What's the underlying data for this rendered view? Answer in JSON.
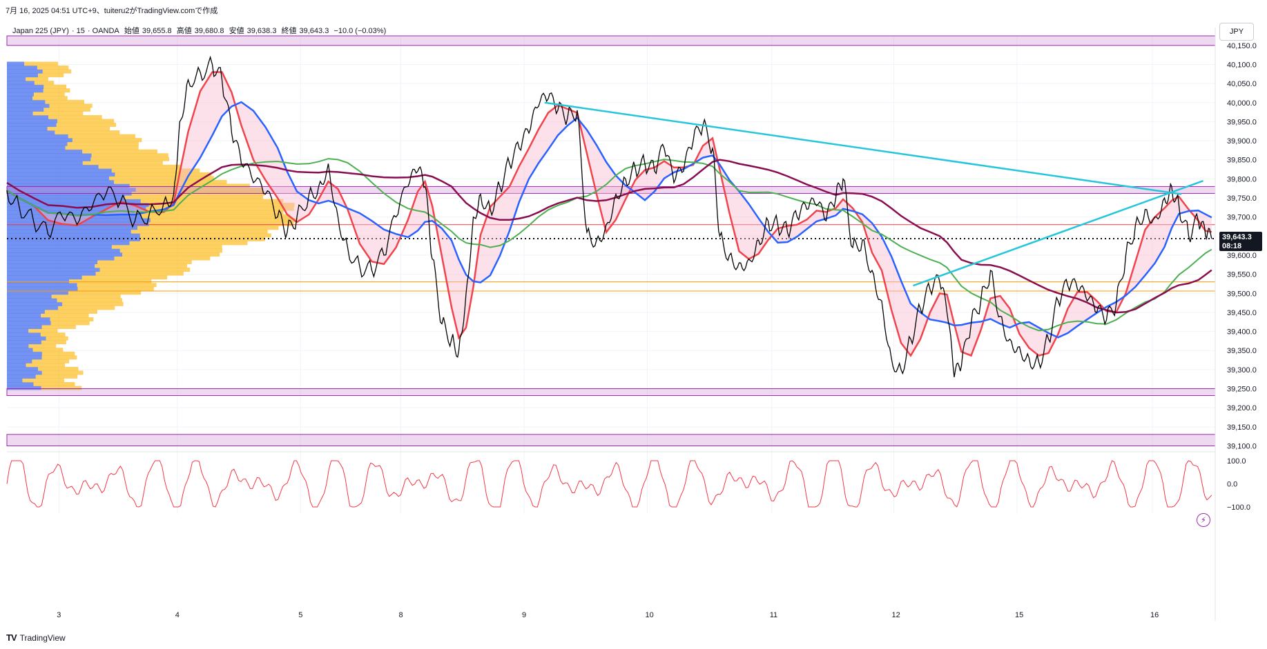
{
  "caption": "7月 16, 2025 04:51 UTC+9、tuiteru2がTradingView.comで作成",
  "legend": {
    "symbol": "Japan 225 (JPY)",
    "interval": "15",
    "source": "OANDA",
    "open_label": "始値",
    "open": "39,655.8",
    "high_label": "高値",
    "high": "39,680.8",
    "low_label": "安値",
    "low": "39,638.3",
    "close_label": "終値",
    "close": "39,643.3",
    "change": "−10.0 (−0.03%)"
  },
  "currency": "JPY",
  "brand": "TradingView",
  "colors": {
    "price": "#000000",
    "fast_ma": "#f0434b",
    "slow_ma": "#2962ff",
    "ma200": "#4caf50",
    "ma_long": "#880e4f",
    "trendline": "#26c6da",
    "zone": "#ce93d8",
    "horizontal_red": "#f23645",
    "horizontal_orange": "#ff9800",
    "oscillator": "#f23645",
    "volume_blue": "#5b7ff0",
    "volume_yellow": "#fbc02d"
  },
  "chart_data": {
    "type": "line",
    "title": "",
    "y_ticks": [
      "40,150.0",
      "40,100.0",
      "40,050.0",
      "40,000.0",
      "39,950.0",
      "39,900.0",
      "39,850.0",
      "39,800.0",
      "39,750.0",
      "39,700.0",
      "39,650.0",
      "39,600.0",
      "39,550.0",
      "39,500.0",
      "39,450.0",
      "39,400.0",
      "39,350.0",
      "39,300.0",
      "39,250.0",
      "39,200.0",
      "39,150.0",
      "39,100.0"
    ],
    "ylim": [
      39090,
      40175
    ],
    "x_ticks": [
      "3",
      "4",
      "5",
      "8",
      "9",
      "10",
      "11",
      "12",
      "15",
      "16"
    ],
    "current_price": "39,643.3",
    "countdown": "08:18",
    "zones": [
      [
        40150,
        40175
      ],
      [
        39762,
        39780
      ],
      [
        39235,
        39250
      ],
      [
        39100,
        39130
      ]
    ],
    "horizontal_lines": [
      {
        "value": 39680,
        "color": "red"
      },
      {
        "value": 39530,
        "color": "orange"
      },
      {
        "value": 39506,
        "color": "orange"
      }
    ],
    "trendlines": [
      {
        "from": [
          0.445,
          40000
        ],
        "to": [
          0.972,
          39760
        ]
      },
      {
        "from": [
          0.75,
          39520
        ],
        "to": [
          0.99,
          39795
        ]
      }
    ],
    "price_path": [
      [
        0.0,
        39770
      ],
      [
        0.01,
        39730
      ],
      [
        0.022,
        39690
      ],
      [
        0.034,
        39655
      ],
      [
        0.046,
        39700
      ],
      [
        0.058,
        39680
      ],
      [
        0.07,
        39720
      ],
      [
        0.082,
        39760
      ],
      [
        0.094,
        39740
      ],
      [
        0.106,
        39690
      ],
      [
        0.118,
        39710
      ],
      [
        0.13,
        39740
      ],
      [
        0.138,
        39760
      ],
      [
        0.143,
        39950
      ],
      [
        0.15,
        40060
      ],
      [
        0.16,
        40080
      ],
      [
        0.17,
        40100
      ],
      [
        0.178,
        40060
      ],
      [
        0.186,
        39920
      ],
      [
        0.194,
        39840
      ],
      [
        0.204,
        39790
      ],
      [
        0.214,
        39760
      ],
      [
        0.224,
        39700
      ],
      [
        0.232,
        39660
      ],
      [
        0.24,
        39700
      ],
      [
        0.25,
        39760
      ],
      [
        0.258,
        39780
      ],
      [
        0.266,
        39840
      ],
      [
        0.274,
        39700
      ],
      [
        0.282,
        39620
      ],
      [
        0.292,
        39570
      ],
      [
        0.302,
        39560
      ],
      [
        0.312,
        39600
      ],
      [
        0.322,
        39700
      ],
      [
        0.332,
        39780
      ],
      [
        0.34,
        39820
      ],
      [
        0.346,
        39780
      ],
      [
        0.352,
        39590
      ],
      [
        0.36,
        39420
      ],
      [
        0.368,
        39380
      ],
      [
        0.374,
        39350
      ],
      [
        0.38,
        39500
      ],
      [
        0.386,
        39700
      ],
      [
        0.392,
        39760
      ],
      [
        0.4,
        39720
      ],
      [
        0.408,
        39780
      ],
      [
        0.416,
        39840
      ],
      [
        0.424,
        39880
      ],
      [
        0.432,
        39920
      ],
      [
        0.44,
        39990
      ],
      [
        0.448,
        40010
      ],
      [
        0.456,
        39980
      ],
      [
        0.464,
        39960
      ],
      [
        0.472,
        39980
      ],
      [
        0.48,
        39660
      ],
      [
        0.488,
        39640
      ],
      [
        0.496,
        39680
      ],
      [
        0.504,
        39760
      ],
      [
        0.512,
        39800
      ],
      [
        0.52,
        39830
      ],
      [
        0.528,
        39840
      ],
      [
        0.536,
        39820
      ],
      [
        0.544,
        39880
      ],
      [
        0.552,
        39790
      ],
      [
        0.56,
        39820
      ],
      [
        0.568,
        39900
      ],
      [
        0.576,
        39940
      ],
      [
        0.584,
        39880
      ],
      [
        0.59,
        39650
      ],
      [
        0.598,
        39600
      ],
      [
        0.606,
        39580
      ],
      [
        0.614,
        39590
      ],
      [
        0.622,
        39640
      ],
      [
        0.63,
        39690
      ],
      [
        0.638,
        39680
      ],
      [
        0.646,
        39660
      ],
      [
        0.654,
        39700
      ],
      [
        0.662,
        39720
      ],
      [
        0.67,
        39730
      ],
      [
        0.678,
        39690
      ],
      [
        0.686,
        39750
      ],
      [
        0.692,
        39800
      ],
      [
        0.7,
        39620
      ],
      [
        0.708,
        39640
      ],
      [
        0.716,
        39560
      ],
      [
        0.724,
        39480
      ],
      [
        0.732,
        39330
      ],
      [
        0.74,
        39300
      ],
      [
        0.748,
        39380
      ],
      [
        0.756,
        39460
      ],
      [
        0.764,
        39510
      ],
      [
        0.772,
        39530
      ],
      [
        0.778,
        39450
      ],
      [
        0.784,
        39280
      ],
      [
        0.79,
        39310
      ],
      [
        0.798,
        39420
      ],
      [
        0.806,
        39480
      ],
      [
        0.814,
        39560
      ],
      [
        0.822,
        39440
      ],
      [
        0.83,
        39380
      ],
      [
        0.838,
        39360
      ],
      [
        0.846,
        39330
      ],
      [
        0.854,
        39320
      ],
      [
        0.862,
        39380
      ],
      [
        0.87,
        39480
      ],
      [
        0.878,
        39520
      ],
      [
        0.886,
        39510
      ],
      [
        0.894,
        39480
      ],
      [
        0.902,
        39450
      ],
      [
        0.91,
        39430
      ],
      [
        0.918,
        39470
      ],
      [
        0.926,
        39600
      ],
      [
        0.934,
        39680
      ],
      [
        0.942,
        39720
      ],
      [
        0.95,
        39700
      ],
      [
        0.958,
        39750
      ],
      [
        0.964,
        39780
      ],
      [
        0.97,
        39730
      ],
      [
        0.978,
        39650
      ],
      [
        0.986,
        39690
      ],
      [
        0.992,
        39650
      ],
      [
        0.997,
        39643
      ]
    ]
  },
  "oscillator": {
    "ticks": [
      "100.0",
      "0.0",
      "−100.0"
    ],
    "range": [
      -100,
      100
    ]
  }
}
